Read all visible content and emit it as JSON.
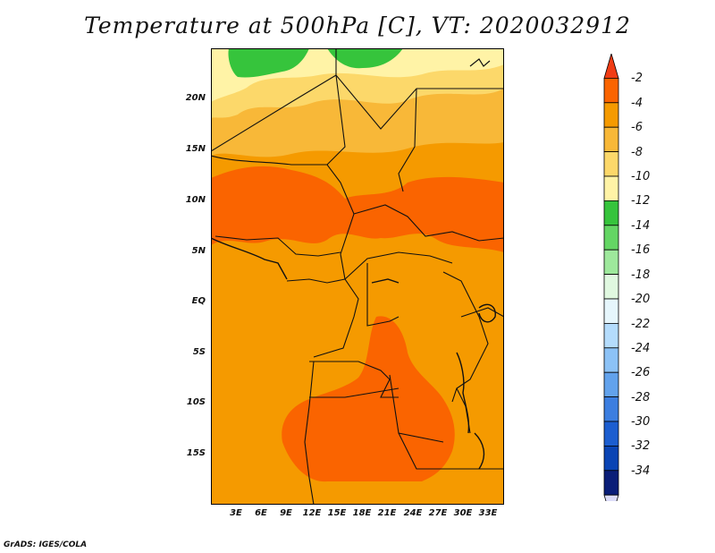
{
  "title": "Temperature at 500hPa [C], VT: 2020032912",
  "credit": "GrADS: IGES/COLA",
  "map": {
    "region": "Central Africa",
    "lat_labels": [
      "20N",
      "15N",
      "10N",
      "5N",
      "EQ",
      "5S",
      "10S",
      "15S"
    ],
    "lon_labels": [
      "3E",
      "6E",
      "9E",
      "12E",
      "15E",
      "18E",
      "21E",
      "24E",
      "27E",
      "30E",
      "33E"
    ]
  },
  "colorbar": {
    "labels": [
      "-2",
      "-4",
      "-6",
      "-8",
      "-10",
      "-12",
      "-14",
      "-16",
      "-18",
      "-20",
      "-22",
      "-24",
      "-26",
      "-28",
      "-30",
      "-32",
      "-34"
    ],
    "colors": [
      "#f03c14",
      "#fa6400",
      "#f59a00",
      "#f8b838",
      "#fcd86a",
      "#fff3a6",
      "#36c43c",
      "#64d664",
      "#9ee89c",
      "#e0f8e0",
      "#e6f6fc",
      "#b4dcfc",
      "#8cc2f6",
      "#62a2ec",
      "#3c7ee0",
      "#1c5ed0",
      "#0a44b4",
      "#0a1e78",
      "#dcdcf8"
    ]
  }
}
